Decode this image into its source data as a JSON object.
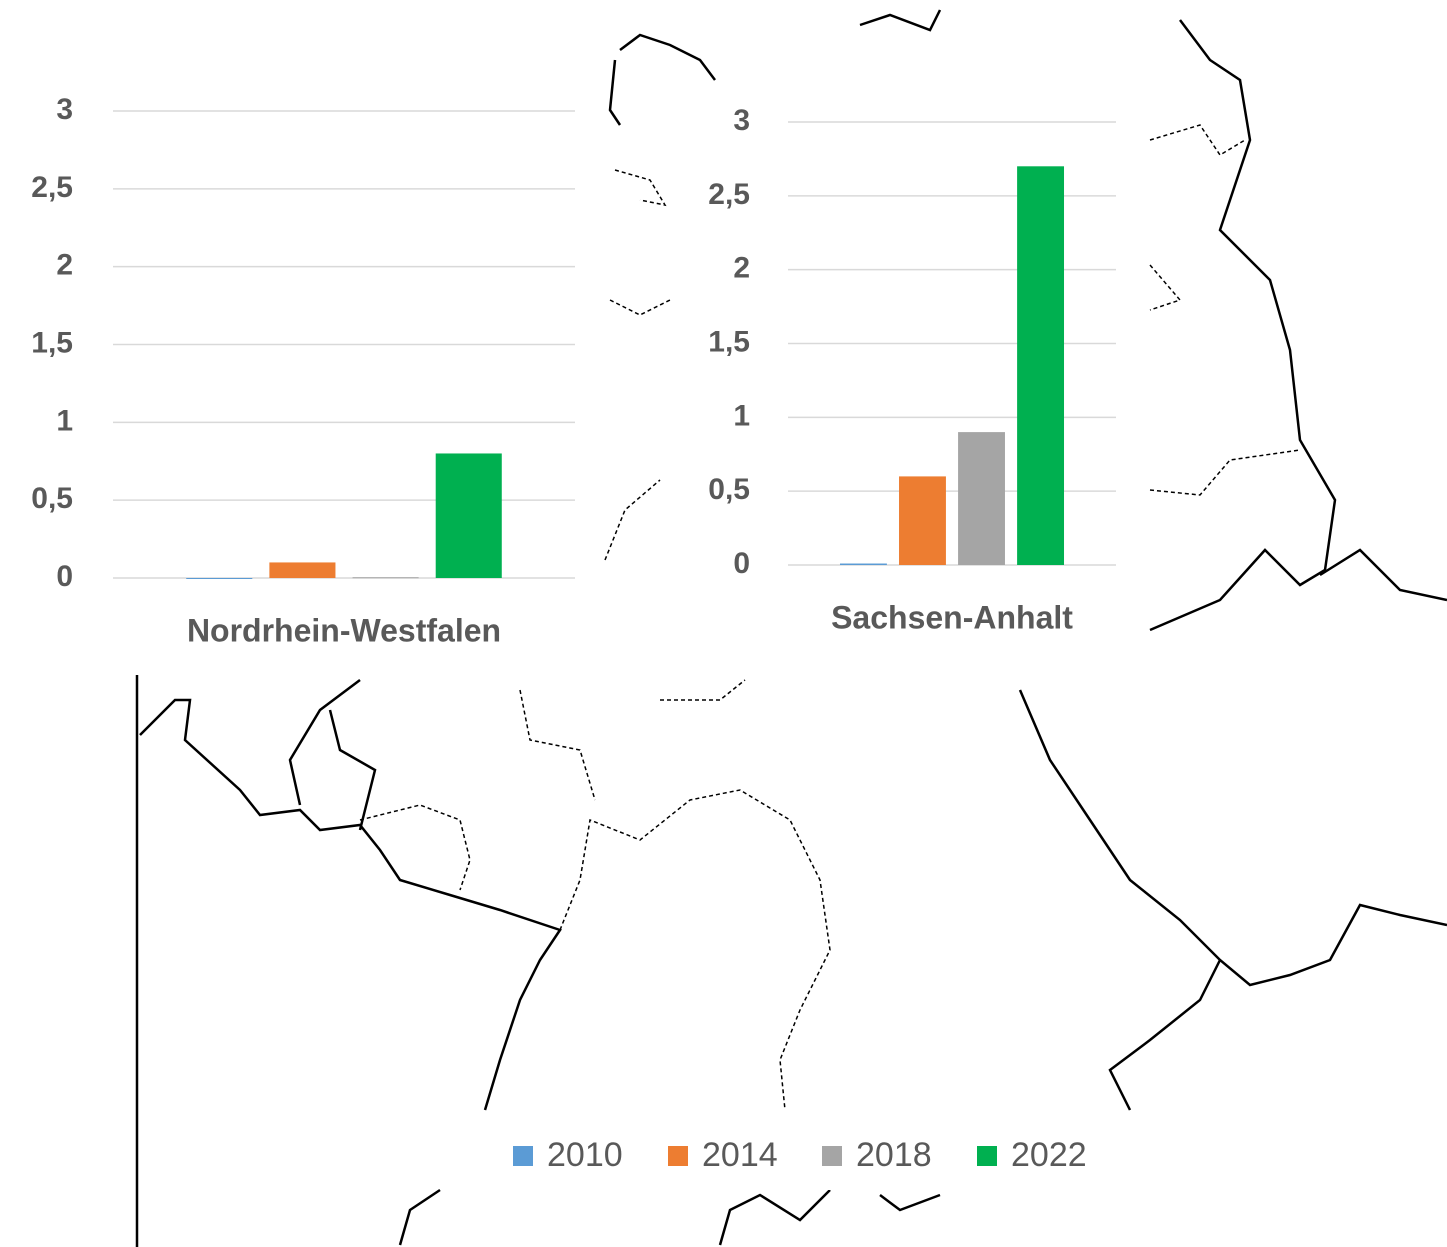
{
  "chart_data": [
    {
      "type": "bar",
      "title": "Nordrhein-Westfalen",
      "values": [
        0,
        0.1,
        0.005,
        0.8
      ],
      "ylim": [
        0,
        3
      ],
      "yticks": [
        0,
        {
          "value": 0.5,
          "label": "0,5"
        },
        1,
        {
          "value": 1.5,
          "label": "1,5"
        },
        2,
        {
          "value": 2.5,
          "label": "2,5"
        },
        3
      ],
      "grid": true
    },
    {
      "type": "bar",
      "title": "Sachsen-Anhalt",
      "values": [
        0.01,
        0.6,
        0.9,
        2.7
      ],
      "ylim": [
        0,
        3
      ],
      "yticks": [
        0,
        {
          "value": 0.5,
          "label": "0,5"
        },
        1,
        {
          "value": 1.5,
          "label": "1,5"
        },
        2,
        {
          "value": 2.5,
          "label": "2,5"
        },
        3
      ],
      "grid": true
    }
  ],
  "legend": {
    "series": [
      {
        "name": "2010",
        "color": "#5b9bd5"
      },
      {
        "name": "2014",
        "color": "#ed7d31"
      },
      {
        "name": "2018",
        "color": "#a5a5a5"
      },
      {
        "name": "2022",
        "color": "#00b050"
      }
    ]
  }
}
